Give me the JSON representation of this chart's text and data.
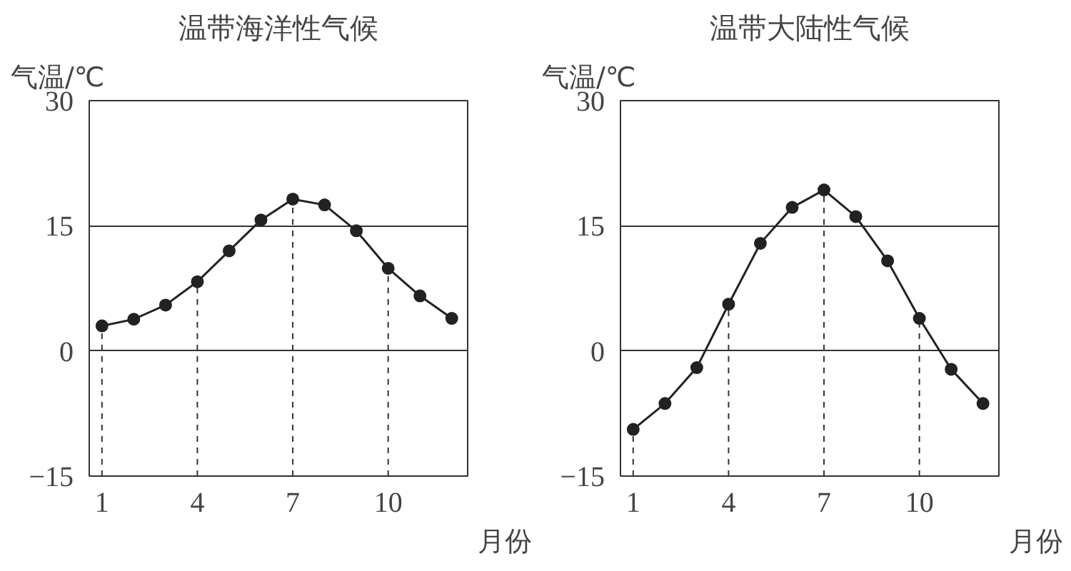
{
  "chart_data": [
    {
      "type": "line",
      "title": "温带海洋性气候",
      "ylabel": "气温/℃",
      "xlabel": "月份",
      "x": [
        1,
        2,
        3,
        4,
        5,
        6,
        7,
        8,
        9,
        10,
        11,
        12
      ],
      "series": [
        {
          "color": "#222222",
          "values": [
            3.0,
            3.8,
            5.5,
            8.3,
            12.0,
            15.7,
            18.2,
            17.5,
            14.4,
            9.9,
            6.6,
            3.9
          ]
        }
      ],
      "xlim": [
        0.6,
        12.5
      ],
      "xticks": [
        1,
        4,
        7,
        10
      ],
      "ylim": [
        -15,
        30
      ],
      "yticks": [
        -15,
        0,
        15,
        30
      ],
      "grid": "y",
      "marker": "circle",
      "line_style": "solid",
      "ref_lines": [
        {
          "axis": "x",
          "value": 1,
          "line_style": "dashed"
        },
        {
          "axis": "x",
          "value": 4,
          "line_style": "dashed"
        },
        {
          "axis": "x",
          "value": 7,
          "line_style": "dashed"
        },
        {
          "axis": "x",
          "value": 10,
          "line_style": "dashed"
        }
      ]
    },
    {
      "type": "line",
      "title": "温带大陆性气候",
      "ylabel": "气温/℃",
      "xlabel": "月份",
      "x": [
        1,
        2,
        3,
        4,
        5,
        6,
        7,
        8,
        9,
        10,
        11,
        12
      ],
      "series": [
        {
          "color": "#222222",
          "values": [
            -9.4,
            -6.3,
            -2.0,
            5.6,
            12.9,
            17.2,
            19.3,
            16.1,
            10.8,
            3.9,
            -2.2,
            -6.3
          ]
        }
      ],
      "xlim": [
        0.6,
        12.5
      ],
      "xticks": [
        1,
        4,
        7,
        10
      ],
      "ylim": [
        -15,
        30
      ],
      "yticks": [
        -15,
        0,
        15,
        30
      ],
      "grid": "y",
      "marker": "circle",
      "line_style": "solid",
      "ref_lines": [
        {
          "axis": "x",
          "value": 1,
          "line_style": "dashed"
        },
        {
          "axis": "x",
          "value": 4,
          "line_style": "dashed"
        },
        {
          "axis": "x",
          "value": 7,
          "line_style": "dashed"
        },
        {
          "axis": "x",
          "value": 10,
          "line_style": "dashed"
        }
      ]
    }
  ]
}
